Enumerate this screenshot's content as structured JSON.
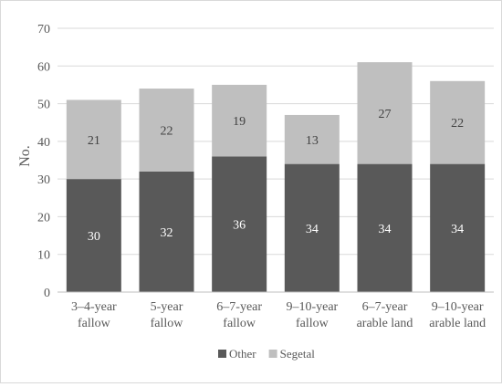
{
  "chart_data": {
    "type": "bar",
    "stacked": true,
    "ylabel": "No.",
    "ylim": [
      0,
      70
    ],
    "yticks": [
      0,
      10,
      20,
      30,
      40,
      50,
      60,
      70
    ],
    "grid": true,
    "legend_position": "bottom",
    "categories": [
      [
        "3–4-year",
        "fallow"
      ],
      [
        "5-year",
        "fallow"
      ],
      [
        "6–7-year",
        "fallow"
      ],
      [
        "9–10-year",
        "fallow"
      ],
      [
        "6–7-year",
        "arable land"
      ],
      [
        "9–10-year",
        "arable land"
      ]
    ],
    "series": [
      {
        "name": "Other",
        "color": "#595959",
        "label_color": "#ffffff",
        "values": [
          30,
          32,
          36,
          34,
          34,
          34
        ]
      },
      {
        "name": "Segetal",
        "color": "#bfbfbf",
        "label_color": "#404040",
        "values": [
          21,
          22,
          19,
          13,
          27,
          22
        ]
      }
    ]
  }
}
